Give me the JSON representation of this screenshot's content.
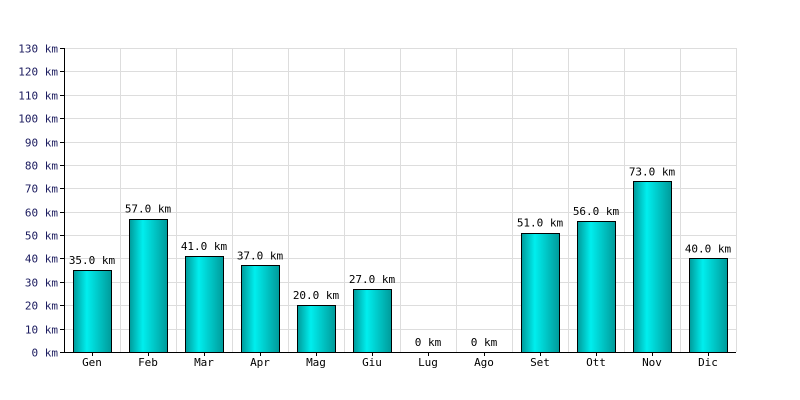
{
  "chart_data": {
    "type": "bar",
    "categories": [
      "Gen",
      "Feb",
      "Mar",
      "Apr",
      "Mag",
      "Giu",
      "Lug",
      "Ago",
      "Set",
      "Ott",
      "Nov",
      "Dic"
    ],
    "values": [
      35,
      57,
      41,
      37,
      20,
      27,
      0,
      0,
      51,
      56,
      73,
      40
    ],
    "value_labels": [
      "35.0 km",
      "57.0 km",
      "41.0 km",
      "37.0 km",
      "20.0 km",
      "27.0 km",
      "0 km",
      "0 km",
      "51.0 km",
      "56.0 km",
      "73.0 km",
      "40.0 km"
    ],
    "y_ticks": [
      "0 km",
      "10 km",
      "20 km",
      "30 km",
      "40 km",
      "50 km",
      "60 km",
      "70 km",
      "80 km",
      "90 km",
      "100 km",
      "110 km",
      "120 km",
      "130 km"
    ],
    "ylim": [
      0,
      130
    ],
    "grid": true,
    "colors": {
      "bar_light": "#00eeee",
      "bar_dark": "#009a9a",
      "bar_stroke": "#000000",
      "grid": "#dddddd",
      "axis": "#000000"
    }
  }
}
